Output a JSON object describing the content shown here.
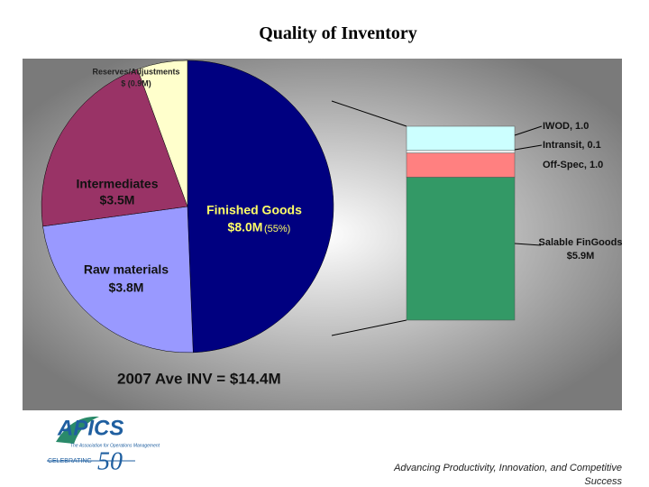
{
  "chart_data": {
    "type": "pie",
    "title": "Quality of Inventory",
    "categories": [
      "Finished Goods",
      "Raw materials",
      "Intermediates",
      "Reserves/Adjustments"
    ],
    "values": [
      8.0,
      3.8,
      3.5,
      -0.9
    ],
    "value_labels": [
      "$8.0M",
      "$3.8M",
      "$3.5M",
      "$ (0.9M)"
    ],
    "colors": [
      "#000080",
      "#9999ff",
      "#993366",
      "#ffffcc"
    ],
    "share_label": {
      "value": 55,
      "label": "(55%)"
    },
    "annotation": "2007 Ave INV = $14.4M",
    "breakdown": {
      "type": "stacked-bar",
      "values": [
        1.0,
        0.1,
        1.0,
        5.9
      ],
      "value_labels": [
        "IWOD, 1.0",
        "Intransit, 0.1",
        "Off-Spec, 1.0",
        "Salable FinGoods $5.9M"
      ],
      "colors": [
        "#ccffff",
        "#ffffff",
        "#ff8080",
        "#339966"
      ]
    }
  },
  "footer": {
    "logo": "APICS",
    "logo_subtitle": "The Association for Operations Management",
    "celebrating": "CELEBRATING",
    "anniversary": "50",
    "tagline": "Advancing Productivity, Innovation, and Competitive Success"
  }
}
